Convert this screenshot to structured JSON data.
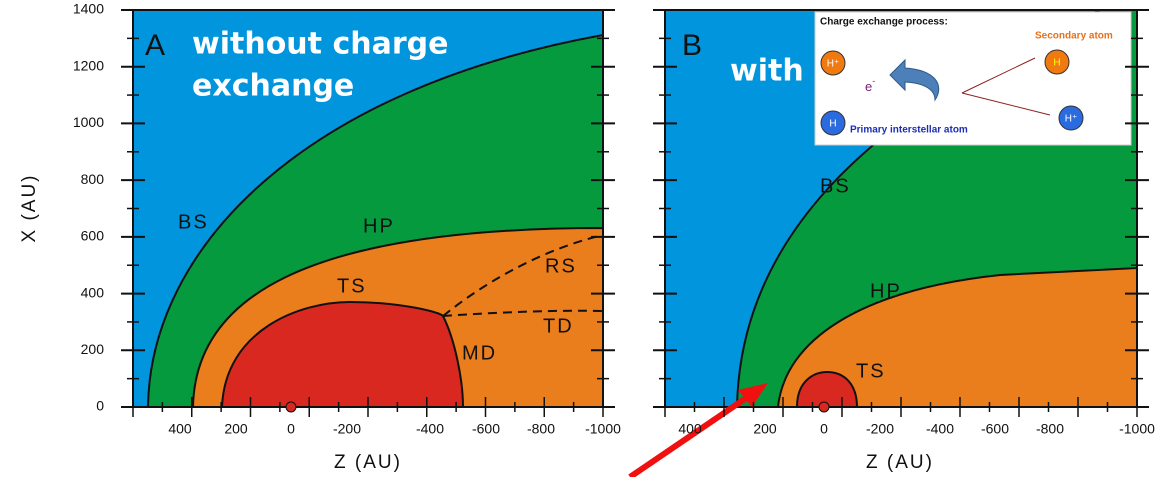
{
  "axes": {
    "y_label": "X (AU)",
    "x_label": "Z (AU)",
    "y_ticks": [
      "0",
      "200",
      "400",
      "600",
      "800",
      "1000",
      "1200",
      "1400"
    ],
    "x_ticks": [
      "400",
      "200",
      "0",
      "-200",
      "-400",
      "-600",
      "-800",
      "-1000"
    ]
  },
  "panel_a": {
    "letter": "A",
    "title_line1": "without charge",
    "title_line2": "exchange",
    "bs": "BS",
    "hp": "HP",
    "ts": "TS",
    "rs": "RS",
    "td": "TD",
    "md": "MD"
  },
  "panel_b": {
    "letter": "B",
    "title": "with",
    "bs": "BS",
    "hp": "HP",
    "ts": "TS"
  },
  "inset": {
    "title": "Charge exchange process:",
    "secondary": "Secondary atom",
    "electron": "e",
    "electron_sup": "-",
    "primary": "Primary interstellar atom",
    "ion_left": "H⁺",
    "atom_right_top": "H",
    "atom_left": "H",
    "ion_right": "H⁺"
  }
}
